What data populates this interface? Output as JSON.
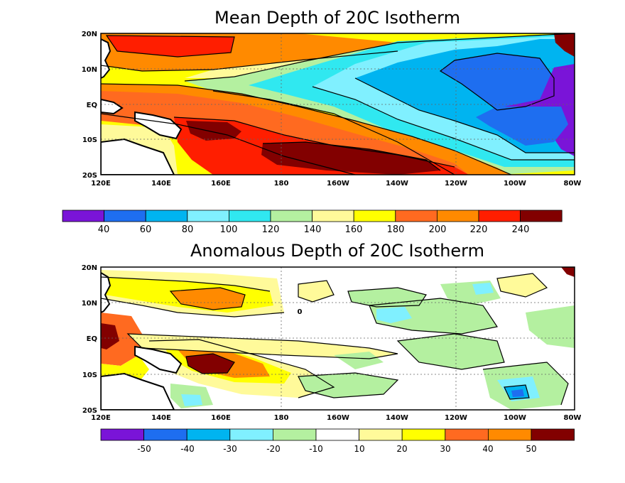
{
  "panels": [
    {
      "title": "Mean Depth of 20C Isotherm",
      "lat_labels": [
        "20N",
        "10N",
        "EQ",
        "10S",
        "20S"
      ],
      "lon_labels": [
        "120E",
        "140E",
        "160E",
        "180",
        "160W",
        "140W",
        "120W",
        "100W",
        "80W"
      ],
      "colorbar_labels": [
        "40",
        "60",
        "80",
        "100",
        "120",
        "140",
        "160",
        "180",
        "200",
        "220",
        "240"
      ],
      "colors": [
        "#7a14d8",
        "#1e6ef0",
        "#00b4f0",
        "#80f0ff",
        "#30e8f0",
        "#b4f0a0",
        "#fffa9a",
        "#ffff00",
        "#ff6a20",
        "#ff8a00",
        "#ff1e00",
        "#820000"
      ]
    },
    {
      "title": "Anomalous Depth of 20C Isotherm",
      "lat_labels": [
        "20N",
        "10N",
        "EQ",
        "10S",
        "20S"
      ],
      "lon_labels": [
        "120E",
        "140E",
        "160E",
        "180",
        "160W",
        "140W",
        "120W",
        "100W",
        "80W"
      ],
      "colorbar_labels": [
        "-50",
        "-40",
        "-30",
        "-20",
        "-10",
        "10",
        "20",
        "30",
        "40",
        "50"
      ],
      "contour_label": "0",
      "colors": [
        "#7a14d8",
        "#1e6ef0",
        "#00b4f0",
        "#80f0ff",
        "#b4f0a0",
        "#ffffff",
        "#fffa9a",
        "#ffff00",
        "#ff6a20",
        "#ff8a00",
        "#820000"
      ]
    }
  ]
}
